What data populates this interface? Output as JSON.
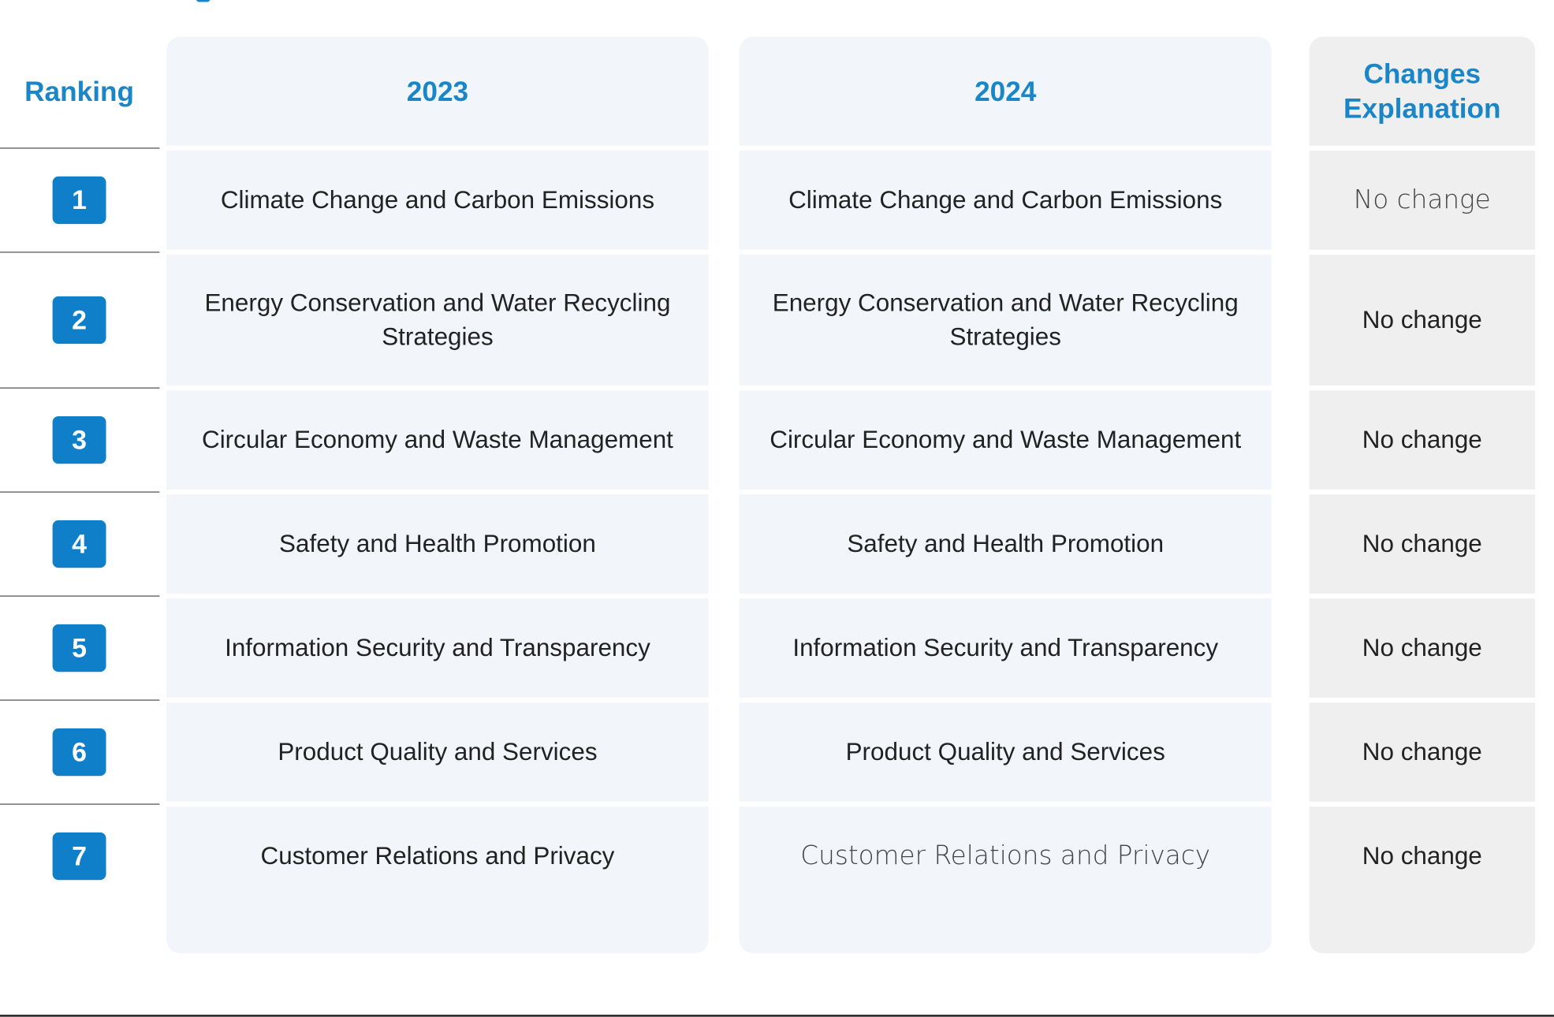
{
  "header": {
    "ranking": "Ranking",
    "y2023": "2023",
    "y2024": "2024",
    "changes": "Changes Explanation"
  },
  "rows": [
    {
      "rank": "1",
      "y2023": "Climate Change and Carbon Emissions",
      "y2024": "Climate Change and Carbon Emissions",
      "change": "No change"
    },
    {
      "rank": "2",
      "y2023": "Energy Conservation and Water Recycling Strategies",
      "y2024": "Energy Conservation and Water Recycling Strategies",
      "change": "No change"
    },
    {
      "rank": "3",
      "y2023": "Circular Economy and Waste Management",
      "y2024": "Circular Economy and Waste Management",
      "change": "No change"
    },
    {
      "rank": "4",
      "y2023": "Safety and Health Promotion",
      "y2024": "Safety and Health Promotion",
      "change": "No change"
    },
    {
      "rank": "5",
      "y2023": "Information Security and Transparency",
      "y2024": "Information Security and Transparency",
      "change": "No change"
    },
    {
      "rank": "6",
      "y2023": "Product Quality and Services",
      "y2024": "Product Quality and Services",
      "change": "No change"
    },
    {
      "rank": "7",
      "y2023": "Customer Relations and Privacy",
      "y2024": "Customer Relations and Privacy",
      "change": "No change"
    }
  ],
  "colors": {
    "accent": "#1a86c8",
    "badge": "#0e7fc8",
    "column_bg": "#f2f5fa",
    "changes_bg": "#efefef"
  }
}
